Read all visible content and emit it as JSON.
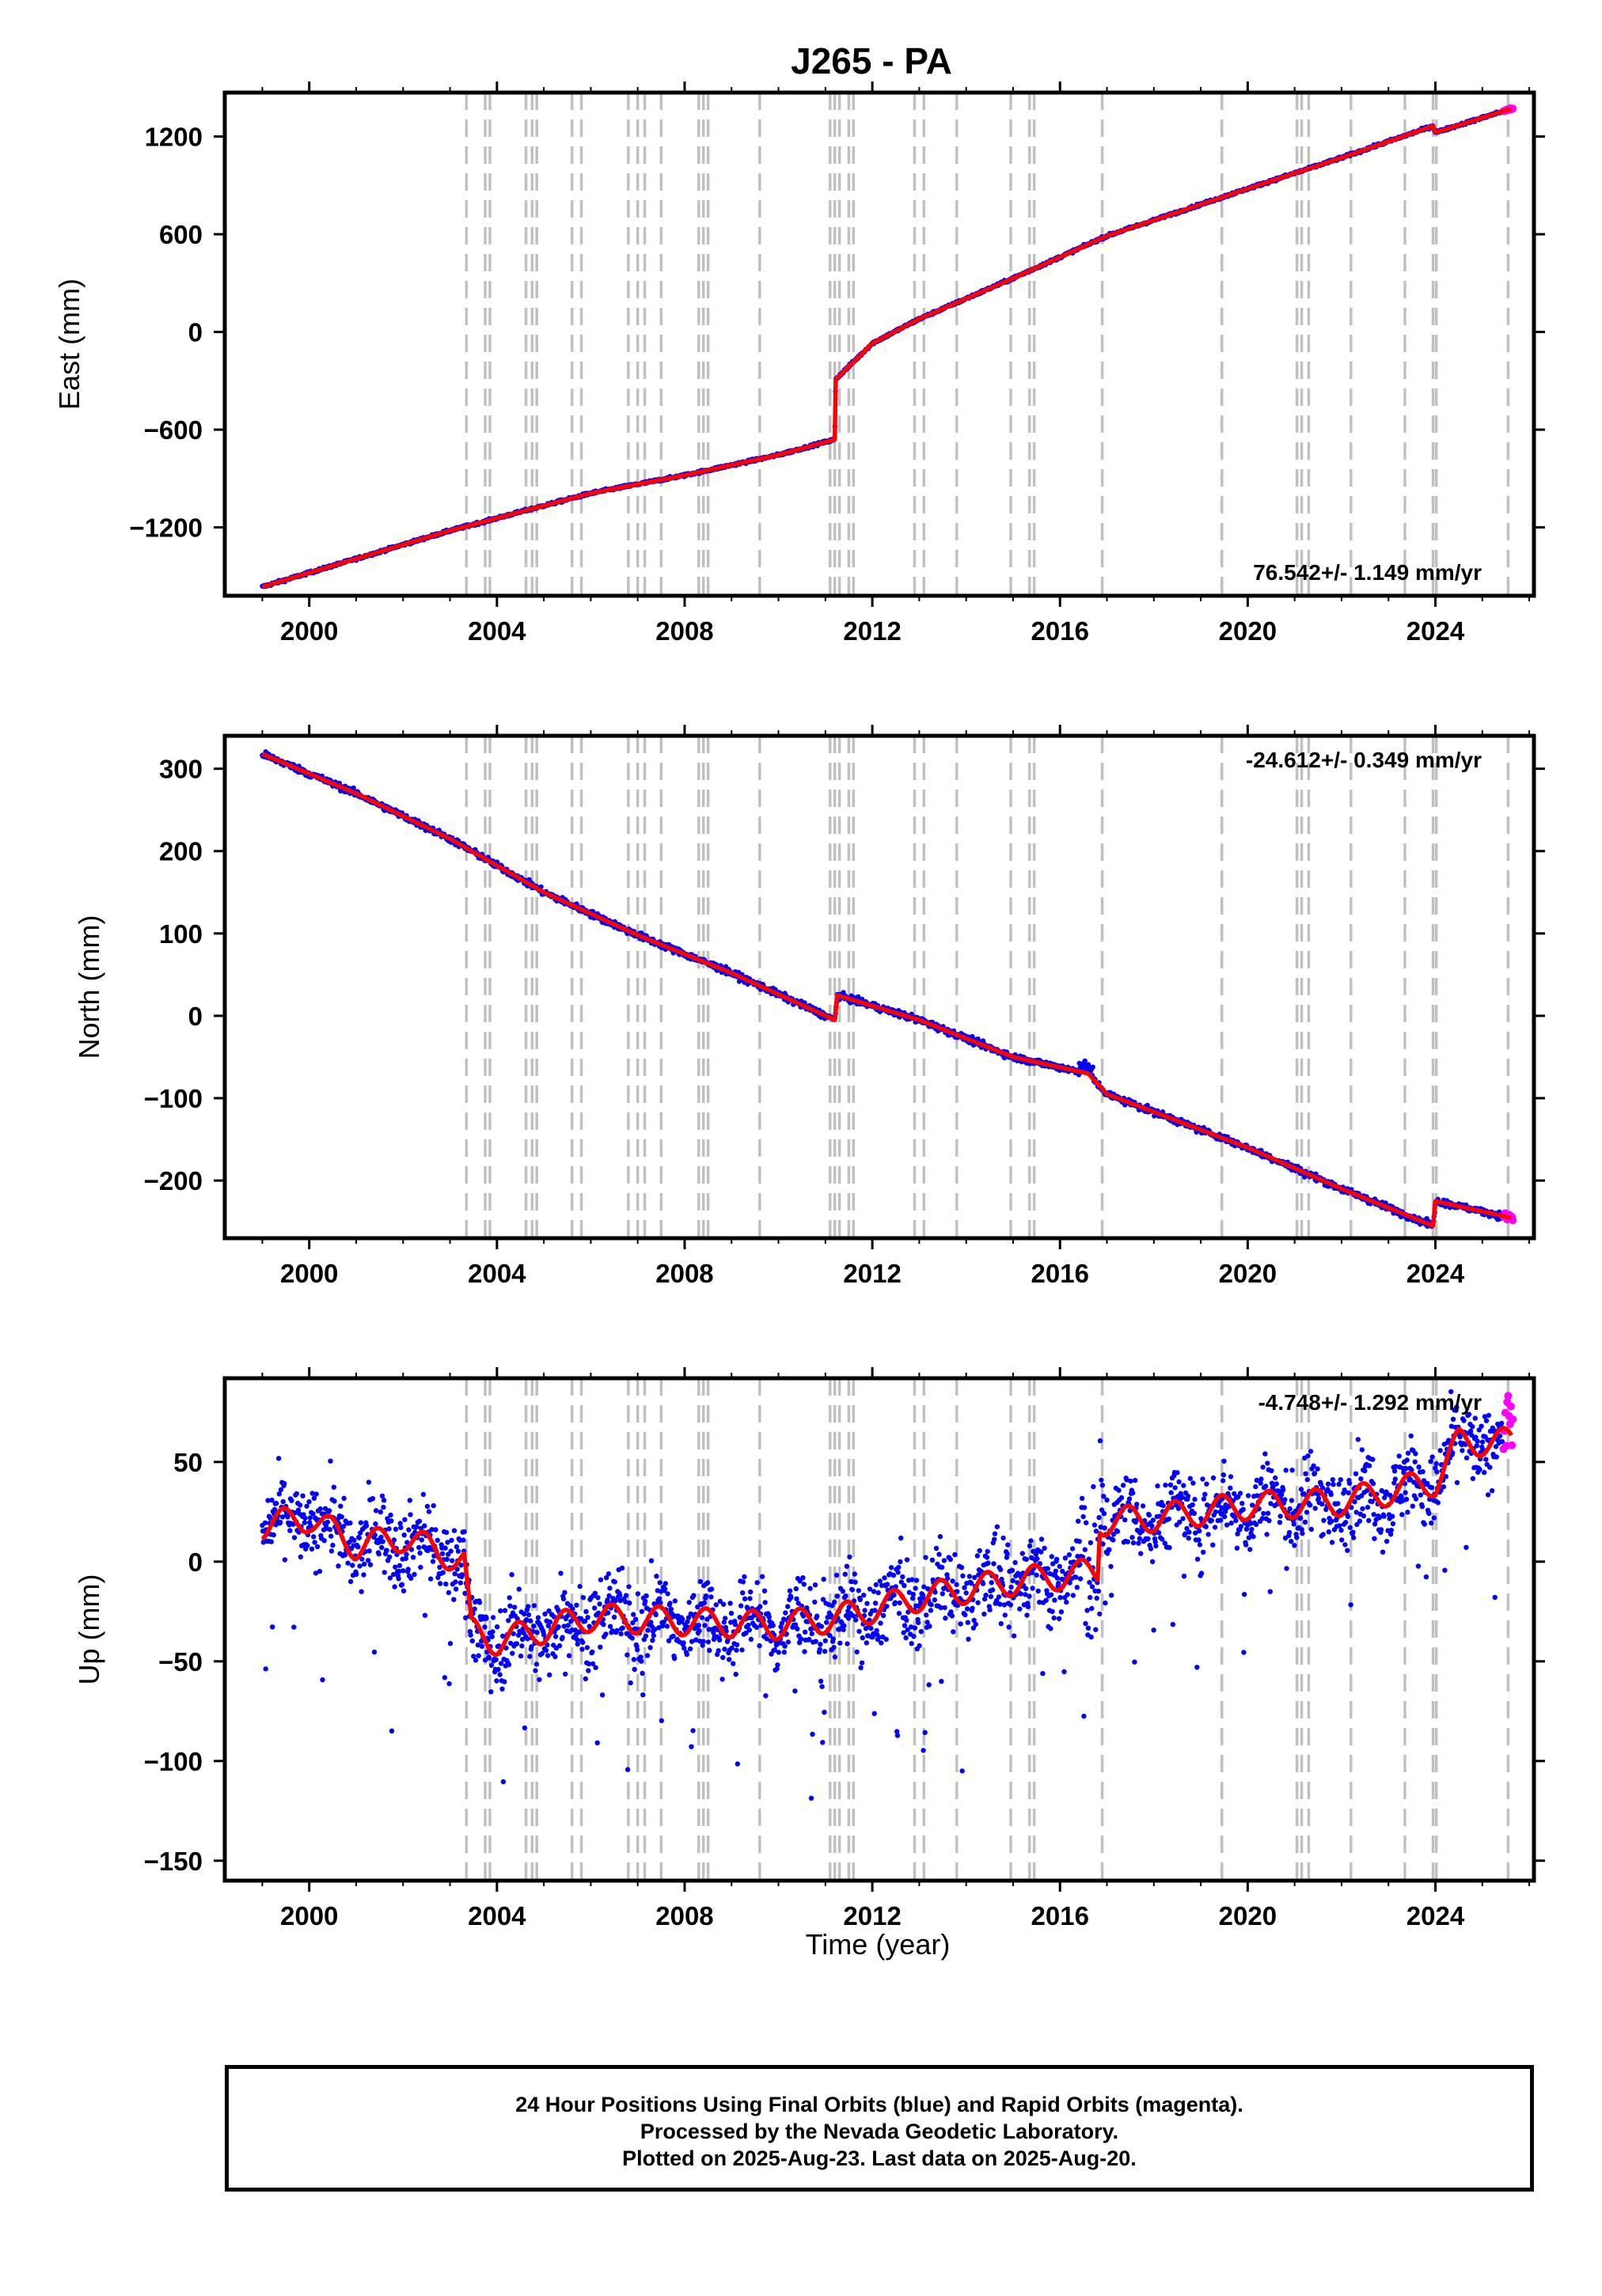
{
  "title": "J265 - PA",
  "xlabel": "Time (year)",
  "colors": {
    "final_orbits": "#0000ff",
    "rapid_orbits": "#ff00ff",
    "model": "#ff0000",
    "event_lines": "#c0c0c0"
  },
  "footer": {
    "line1": "24 Hour Positions Using Final Orbits (blue) and Rapid Orbits (magenta).",
    "line2": "Processed by the Nevada Geodetic Laboratory.",
    "line3": "Plotted on 2025-Aug-23. Last data on 2025-Aug-20."
  },
  "chart_data": [
    {
      "type": "scatter",
      "ylabel": "East (mm)",
      "rate_label": "76.542+/- 1.149 mm/yr",
      "rate_position": "bottom-right",
      "xlim": [
        1998.2,
        2026.1
      ],
      "ylim": [
        -1620,
        1470
      ],
      "x_ticks": [
        2000,
        2004,
        2008,
        2012,
        2016,
        2020,
        2024
      ],
      "y_ticks": [
        1200,
        600,
        0,
        -600,
        -1200
      ],
      "y_tick_labels": [
        "1200",
        "600",
        "0",
        "−600",
        "−1200"
      ],
      "grid": false,
      "series": [
        {
          "values": [
            [
              1999.0,
              -1565
            ],
            [
              2003.0,
              -1220
            ],
            [
              2006.0,
              -990
            ],
            [
              2008.0,
              -880
            ],
            [
              2010.0,
              -755
            ],
            [
              2011.2,
              -660
            ],
            [
              2011.22,
              -290
            ],
            [
              2012.0,
              -70
            ],
            [
              2013.0,
              80
            ],
            [
              2015.0,
              330
            ],
            [
              2017.0,
              590
            ],
            [
              2020.0,
              880
            ],
            [
              2022.0,
              1070
            ],
            [
              2023.95,
              1265
            ],
            [
              2024.0,
              1225
            ],
            [
              2025.6,
              1370
            ]
          ]
        }
      ]
    },
    {
      "type": "scatter",
      "ylabel": "North (mm)",
      "rate_label": "-24.612+/- 0.349 mm/yr",
      "rate_position": "top-right",
      "xlim": [
        1998.2,
        2026.1
      ],
      "ylim": [
        -270,
        340
      ],
      "x_ticks": [
        2000,
        2004,
        2008,
        2012,
        2016,
        2020,
        2024
      ],
      "y_ticks": [
        300,
        200,
        100,
        0,
        -100,
        -200
      ],
      "y_tick_labels": [
        "300",
        "200",
        "100",
        "0",
        "−100",
        "−200"
      ],
      "grid": false,
      "series": [
        {
          "values": [
            [
              1999.0,
              318
            ],
            [
              2001.0,
              270
            ],
            [
              2003.0,
              215
            ],
            [
              2005.0,
              150
            ],
            [
              2007.0,
              98
            ],
            [
              2009.0,
              52
            ],
            [
              2011.2,
              -5
            ],
            [
              2011.25,
              25
            ],
            [
              2013.0,
              -5
            ],
            [
              2015.0,
              -50
            ],
            [
              2016.6,
              -70
            ],
            [
              2017.0,
              -95
            ],
            [
              2020.0,
              -160
            ],
            [
              2022.0,
              -210
            ],
            [
              2023.95,
              -255
            ],
            [
              2024.0,
              -225
            ],
            [
              2025.6,
              -245
            ]
          ]
        }
      ]
    },
    {
      "type": "scatter",
      "ylabel": "Up (mm)",
      "rate_label": "-4.748+/- 1.292 mm/yr",
      "rate_position": "top-right",
      "xlim": [
        1998.2,
        2026.1
      ],
      "ylim": [
        -160,
        92
      ],
      "x_ticks": [
        2000,
        2004,
        2008,
        2012,
        2016,
        2020,
        2024
      ],
      "y_ticks": [
        50,
        0,
        -50,
        -100,
        -150
      ],
      "y_tick_labels": [
        "50",
        "0",
        "−50",
        "−100",
        "−150"
      ],
      "grid": false,
      "series": [
        {
          "values": [
            [
              1999.0,
              18
            ],
            [
              2000.0,
              22
            ],
            [
              2001.0,
              8
            ],
            [
              2002.0,
              12
            ],
            [
              2003.3,
              0
            ],
            [
              2003.45,
              -35
            ],
            [
              2004.0,
              -40
            ],
            [
              2006.0,
              -28
            ],
            [
              2008.0,
              -30
            ],
            [
              2010.0,
              -32
            ],
            [
              2011.3,
              -28
            ],
            [
              2013.0,
              -18
            ],
            [
              2015.0,
              -10
            ],
            [
              2016.8,
              -5
            ],
            [
              2016.85,
              20
            ],
            [
              2018.0,
              22
            ],
            [
              2020.0,
              28
            ],
            [
              2022.0,
              30
            ],
            [
              2024.0,
              40
            ],
            [
              2024.5,
              60
            ],
            [
              2025.6,
              60
            ]
          ]
        }
      ]
    }
  ],
  "event_lines_years": [
    2003.35,
    2003.75,
    2003.85,
    2004.62,
    2004.75,
    2004.85,
    2005.6,
    2005.8,
    2006.8,
    2007.0,
    2007.15,
    2007.5,
    2008.3,
    2008.4,
    2008.5,
    2009.6,
    2011.1,
    2011.2,
    2011.3,
    2011.5,
    2011.6,
    2012.9,
    2013.1,
    2013.8,
    2014.95,
    2015.35,
    2015.45,
    2016.9,
    2019.45,
    2021.05,
    2021.15,
    2021.3,
    2022.2,
    2023.35,
    2023.95,
    2024.02,
    2025.55
  ]
}
